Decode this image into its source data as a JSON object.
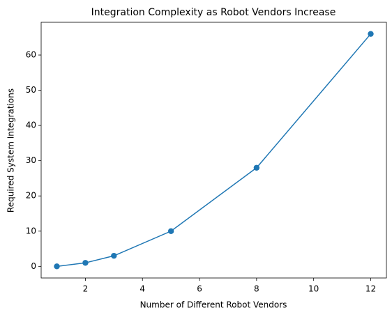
{
  "chart_data": {
    "type": "line",
    "title": "Integration Complexity as Robot Vendors Increase",
    "x_label": "Number of Different Robot Vendors",
    "y_label": "Required System Integrations",
    "x": [
      1,
      2,
      3,
      5,
      8,
      12
    ],
    "series": [
      {
        "color": "#1f77b4",
        "values": [
          0,
          1,
          3,
          10,
          28,
          66
        ]
      }
    ],
    "markers": true,
    "grid": false,
    "xlim": [
      0.45,
      12.55
    ],
    "ylim": [
      -3.3,
      69.3
    ],
    "xticks": [
      2,
      4,
      6,
      8,
      10,
      12
    ],
    "yticks": [
      0,
      10,
      20,
      30,
      40,
      50,
      60
    ]
  }
}
